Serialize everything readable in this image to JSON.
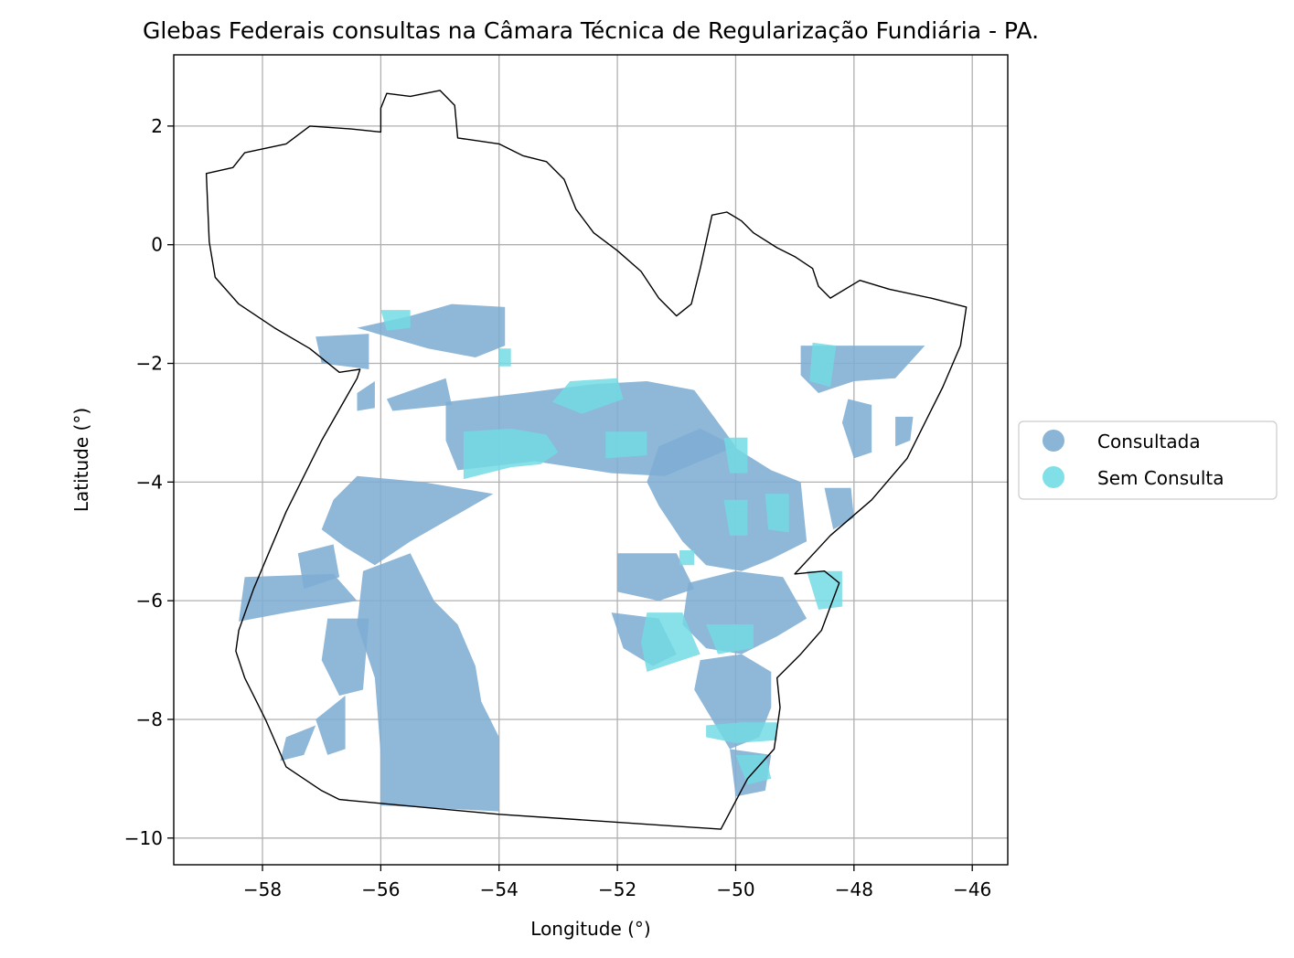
{
  "chart_data": {
    "type": "map",
    "title": "Glebas Federais consultas na Câmara Técnica de Regularização Fundiária - PA.",
    "xlabel": "Longitude (°)",
    "ylabel": "Latitude (°)",
    "xlim": [
      -59.5,
      -45.4
    ],
    "ylim": [
      -10.45,
      3.2
    ],
    "xticks": [
      -58,
      -56,
      -54,
      -52,
      -50,
      -48,
      -46
    ],
    "yticks": [
      2,
      0,
      -2,
      -4,
      -6,
      -8,
      -10
    ],
    "xtick_labels": [
      "−58",
      "−56",
      "−54",
      "−52",
      "−50",
      "−48",
      "−46"
    ],
    "ytick_labels": [
      "2",
      "0",
      "−2",
      "−4",
      "−6",
      "−8",
      "−10"
    ],
    "grid": true,
    "legend_position": "center-right, outside plot",
    "series": [
      {
        "name": "Consultada",
        "color": "#7eadd3"
      },
      {
        "name": "Sem Consulta",
        "color": "#73dbe4"
      }
    ],
    "state_outline": [
      [
        -58.9,
        0.05
      ],
      [
        -58.95,
        1.2
      ],
      [
        -58.5,
        1.3
      ],
      [
        -58.3,
        1.55
      ],
      [
        -57.6,
        1.7
      ],
      [
        -57.2,
        2.0
      ],
      [
        -56.5,
        1.95
      ],
      [
        -56.0,
        1.9
      ],
      [
        -56.0,
        2.3
      ],
      [
        -55.9,
        2.55
      ],
      [
        -55.5,
        2.5
      ],
      [
        -55.0,
        2.6
      ],
      [
        -54.75,
        2.35
      ],
      [
        -54.7,
        1.8
      ],
      [
        -54.0,
        1.7
      ],
      [
        -53.6,
        1.5
      ],
      [
        -53.2,
        1.4
      ],
      [
        -52.9,
        1.1
      ],
      [
        -52.7,
        0.6
      ],
      [
        -52.4,
        0.2
      ],
      [
        -52.0,
        -0.1
      ],
      [
        -51.6,
        -0.45
      ],
      [
        -51.3,
        -0.9
      ],
      [
        -51.0,
        -1.2
      ],
      [
        -50.75,
        -1.0
      ],
      [
        -50.6,
        -0.4
      ],
      [
        -50.4,
        0.5
      ],
      [
        -50.15,
        0.55
      ],
      [
        -49.9,
        0.4
      ],
      [
        -49.7,
        0.2
      ],
      [
        -49.3,
        -0.05
      ],
      [
        -49.0,
        -0.2
      ],
      [
        -48.7,
        -0.4
      ],
      [
        -48.6,
        -0.7
      ],
      [
        -48.4,
        -0.9
      ],
      [
        -47.9,
        -0.6
      ],
      [
        -47.4,
        -0.75
      ],
      [
        -46.7,
        -0.9
      ],
      [
        -46.1,
        -1.05
      ],
      [
        -46.2,
        -1.7
      ],
      [
        -46.5,
        -2.4
      ],
      [
        -46.8,
        -3.0
      ],
      [
        -47.1,
        -3.6
      ],
      [
        -47.7,
        -4.3
      ],
      [
        -48.4,
        -4.9
      ],
      [
        -49.0,
        -5.55
      ],
      [
        -48.5,
        -5.5
      ],
      [
        -48.25,
        -5.7
      ],
      [
        -48.4,
        -6.1
      ],
      [
        -48.55,
        -6.5
      ],
      [
        -48.9,
        -6.9
      ],
      [
        -49.3,
        -7.3
      ],
      [
        -49.25,
        -7.8
      ],
      [
        -49.35,
        -8.5
      ],
      [
        -49.8,
        -9.0
      ],
      [
        -50.25,
        -9.85
      ],
      [
        -54.0,
        -9.6
      ],
      [
        -56.7,
        -9.35
      ],
      [
        -57.0,
        -9.2
      ],
      [
        -57.6,
        -8.8
      ],
      [
        -57.95,
        -8.0
      ],
      [
        -58.3,
        -7.3
      ],
      [
        -58.45,
        -6.85
      ],
      [
        -58.4,
        -6.5
      ],
      [
        -58.15,
        -5.8
      ],
      [
        -57.6,
        -4.5
      ],
      [
        -57.0,
        -3.3
      ],
      [
        -56.4,
        -2.25
      ],
      [
        -56.35,
        -2.1
      ],
      [
        -56.7,
        -2.15
      ],
      [
        -57.2,
        -1.75
      ],
      [
        -57.8,
        -1.4
      ],
      [
        -58.4,
        -1.0
      ],
      [
        -58.8,
        -0.55
      ],
      [
        -58.9,
        0.05
      ]
    ],
    "glebas_consultada": [
      [
        [
          -56.4,
          -1.4
        ],
        [
          -55.5,
          -1.2
        ],
        [
          -54.8,
          -1.0
        ],
        [
          -53.9,
          -1.05
        ],
        [
          -53.9,
          -1.7
        ],
        [
          -54.4,
          -1.9
        ],
        [
          -55.2,
          -1.75
        ],
        [
          -55.9,
          -1.55
        ]
      ],
      [
        [
          -57.1,
          -1.55
        ],
        [
          -56.2,
          -1.5
        ],
        [
          -56.2,
          -2.1
        ],
        [
          -57.0,
          -2.0
        ]
      ],
      [
        [
          -56.4,
          -2.5
        ],
        [
          -56.1,
          -2.3
        ],
        [
          -56.1,
          -2.75
        ],
        [
          -56.4,
          -2.8
        ]
      ],
      [
        [
          -55.9,
          -2.6
        ],
        [
          -54.9,
          -2.25
        ],
        [
          -54.8,
          -2.7
        ],
        [
          -55.8,
          -2.8
        ]
      ],
      [
        [
          -54.9,
          -2.65
        ],
        [
          -53.6,
          -2.5
        ],
        [
          -52.4,
          -2.35
        ],
        [
          -51.5,
          -2.3
        ],
        [
          -50.7,
          -2.45
        ],
        [
          -50.0,
          -3.4
        ],
        [
          -51.2,
          -3.9
        ],
        [
          -52.1,
          -3.85
        ],
        [
          -53.4,
          -3.65
        ],
        [
          -54.7,
          -3.8
        ],
        [
          -54.9,
          -3.3
        ]
      ],
      [
        [
          -56.4,
          -3.9
        ],
        [
          -55.3,
          -4.0
        ],
        [
          -54.1,
          -4.2
        ],
        [
          -54.8,
          -4.6
        ],
        [
          -55.5,
          -5.0
        ],
        [
          -56.1,
          -5.4
        ],
        [
          -56.6,
          -5.1
        ],
        [
          -57.0,
          -4.8
        ],
        [
          -56.8,
          -4.3
        ]
      ],
      [
        [
          -57.4,
          -5.2
        ],
        [
          -56.8,
          -5.05
        ],
        [
          -56.7,
          -5.6
        ],
        [
          -57.3,
          -5.8
        ]
      ],
      [
        [
          -58.3,
          -5.6
        ],
        [
          -56.8,
          -5.55
        ],
        [
          -56.4,
          -6.0
        ],
        [
          -57.6,
          -6.2
        ],
        [
          -58.4,
          -6.35
        ]
      ],
      [
        [
          -56.3,
          -5.5
        ],
        [
          -55.5,
          -5.2
        ],
        [
          -55.1,
          -6.0
        ],
        [
          -54.7,
          -6.4
        ],
        [
          -54.4,
          -7.1
        ],
        [
          -54.3,
          -7.7
        ],
        [
          -54.0,
          -8.3
        ],
        [
          -54.0,
          -9.55
        ],
        [
          -55.0,
          -9.5
        ],
        [
          -56.0,
          -9.45
        ],
        [
          -56.0,
          -8.6
        ],
        [
          -56.1,
          -7.3
        ],
        [
          -56.4,
          -6.4
        ]
      ],
      [
        [
          -56.9,
          -6.3
        ],
        [
          -56.2,
          -6.3
        ],
        [
          -56.3,
          -7.5
        ],
        [
          -56.7,
          -7.6
        ],
        [
          -57.0,
          -7.0
        ]
      ],
      [
        [
          -57.1,
          -8.0
        ],
        [
          -56.6,
          -7.6
        ],
        [
          -56.6,
          -8.5
        ],
        [
          -56.9,
          -8.6
        ]
      ],
      [
        [
          -57.6,
          -8.3
        ],
        [
          -57.1,
          -8.1
        ],
        [
          -57.3,
          -8.6
        ],
        [
          -57.7,
          -8.7
        ]
      ],
      [
        [
          -52.0,
          -5.2
        ],
        [
          -51.0,
          -5.2
        ],
        [
          -50.7,
          -5.8
        ],
        [
          -51.3,
          -6.0
        ],
        [
          -52.0,
          -5.85
        ]
      ],
      [
        [
          -52.1,
          -6.2
        ],
        [
          -51.3,
          -6.3
        ],
        [
          -51.0,
          -6.9
        ],
        [
          -51.4,
          -7.1
        ],
        [
          -51.9,
          -6.8
        ]
      ],
      [
        [
          -51.3,
          -3.4
        ],
        [
          -50.6,
          -3.1
        ],
        [
          -50.2,
          -3.3
        ],
        [
          -49.4,
          -3.8
        ],
        [
          -48.9,
          -4.0
        ],
        [
          -48.8,
          -5.0
        ],
        [
          -49.4,
          -5.3
        ],
        [
          -49.9,
          -5.5
        ],
        [
          -50.5,
          -5.4
        ],
        [
          -50.9,
          -5.0
        ],
        [
          -51.3,
          -4.4
        ],
        [
          -51.5,
          -4.0
        ]
      ],
      [
        [
          -50.8,
          -5.7
        ],
        [
          -50.0,
          -5.5
        ],
        [
          -49.2,
          -5.6
        ],
        [
          -48.8,
          -6.3
        ],
        [
          -49.3,
          -6.6
        ],
        [
          -49.9,
          -6.9
        ],
        [
          -50.5,
          -6.8
        ],
        [
          -50.9,
          -6.4
        ]
      ],
      [
        [
          -50.6,
          -7.0
        ],
        [
          -49.9,
          -6.9
        ],
        [
          -49.4,
          -7.2
        ],
        [
          -49.4,
          -7.8
        ],
        [
          -49.6,
          -8.3
        ],
        [
          -50.1,
          -8.5
        ],
        [
          -50.4,
          -8.0
        ],
        [
          -50.7,
          -7.5
        ]
      ],
      [
        [
          -50.1,
          -8.5
        ],
        [
          -49.4,
          -8.6
        ],
        [
          -49.5,
          -9.2
        ],
        [
          -50.0,
          -9.3
        ]
      ],
      [
        [
          -48.9,
          -1.7
        ],
        [
          -47.5,
          -1.7
        ],
        [
          -46.8,
          -1.7
        ],
        [
          -47.3,
          -2.25
        ],
        [
          -48.0,
          -2.3
        ],
        [
          -48.6,
          -2.5
        ],
        [
          -48.9,
          -2.2
        ]
      ],
      [
        [
          -48.1,
          -2.6
        ],
        [
          -47.7,
          -2.7
        ],
        [
          -47.7,
          -3.5
        ],
        [
          -48.0,
          -3.6
        ],
        [
          -48.2,
          -3.0
        ]
      ],
      [
        [
          -47.3,
          -2.9
        ],
        [
          -47.0,
          -2.9
        ],
        [
          -47.05,
          -3.3
        ],
        [
          -47.3,
          -3.4
        ]
      ],
      [
        [
          -48.5,
          -4.1
        ],
        [
          -48.05,
          -4.1
        ],
        [
          -48.0,
          -4.6
        ],
        [
          -48.35,
          -4.8
        ]
      ]
    ],
    "glebas_sem_consulta": [
      [
        [
          -56.0,
          -1.1
        ],
        [
          -55.5,
          -1.1
        ],
        [
          -55.5,
          -1.4
        ],
        [
          -55.9,
          -1.45
        ]
      ],
      [
        [
          -54.0,
          -1.75
        ],
        [
          -53.8,
          -1.75
        ],
        [
          -53.8,
          -2.05
        ],
        [
          -54.0,
          -2.05
        ]
      ],
      [
        [
          -52.8,
          -2.3
        ],
        [
          -52.0,
          -2.25
        ],
        [
          -51.9,
          -2.6
        ],
        [
          -52.6,
          -2.85
        ],
        [
          -53.1,
          -2.65
        ]
      ],
      [
        [
          -54.6,
          -3.15
        ],
        [
          -53.8,
          -3.1
        ],
        [
          -53.2,
          -3.2
        ],
        [
          -53.0,
          -3.5
        ],
        [
          -53.3,
          -3.7
        ],
        [
          -53.8,
          -3.75
        ],
        [
          -54.6,
          -3.95
        ]
      ],
      [
        [
          -52.2,
          -3.15
        ],
        [
          -51.5,
          -3.15
        ],
        [
          -51.5,
          -3.55
        ],
        [
          -52.2,
          -3.6
        ]
      ],
      [
        [
          -48.7,
          -1.65
        ],
        [
          -48.3,
          -1.7
        ],
        [
          -48.4,
          -2.4
        ],
        [
          -48.75,
          -2.3
        ]
      ],
      [
        [
          -50.2,
          -3.25
        ],
        [
          -49.8,
          -3.25
        ],
        [
          -49.8,
          -3.85
        ],
        [
          -50.1,
          -3.85
        ]
      ],
      [
        [
          -49.5,
          -4.2
        ],
        [
          -49.1,
          -4.2
        ],
        [
          -49.1,
          -4.85
        ],
        [
          -49.45,
          -4.8
        ]
      ],
      [
        [
          -50.2,
          -4.3
        ],
        [
          -49.8,
          -4.3
        ],
        [
          -49.8,
          -4.9
        ],
        [
          -50.1,
          -4.9
        ]
      ],
      [
        [
          -48.8,
          -5.5
        ],
        [
          -48.2,
          -5.5
        ],
        [
          -48.2,
          -6.1
        ],
        [
          -48.6,
          -6.15
        ]
      ],
      [
        [
          -51.5,
          -6.2
        ],
        [
          -50.9,
          -6.2
        ],
        [
          -50.6,
          -6.9
        ],
        [
          -51.5,
          -7.2
        ],
        [
          -51.6,
          -6.7
        ]
      ],
      [
        [
          -50.5,
          -6.4
        ],
        [
          -49.7,
          -6.4
        ],
        [
          -49.7,
          -6.8
        ],
        [
          -50.3,
          -6.9
        ]
      ],
      [
        [
          -50.5,
          -8.1
        ],
        [
          -49.9,
          -8.05
        ],
        [
          -49.3,
          -8.05
        ],
        [
          -49.3,
          -8.35
        ],
        [
          -50.0,
          -8.4
        ],
        [
          -50.5,
          -8.3
        ]
      ],
      [
        [
          -50.0,
          -8.6
        ],
        [
          -49.5,
          -8.6
        ],
        [
          -49.4,
          -9.0
        ],
        [
          -49.8,
          -9.1
        ]
      ],
      [
        [
          -50.95,
          -5.15
        ],
        [
          -50.7,
          -5.15
        ],
        [
          -50.7,
          -5.4
        ],
        [
          -50.95,
          -5.4
        ]
      ]
    ]
  }
}
